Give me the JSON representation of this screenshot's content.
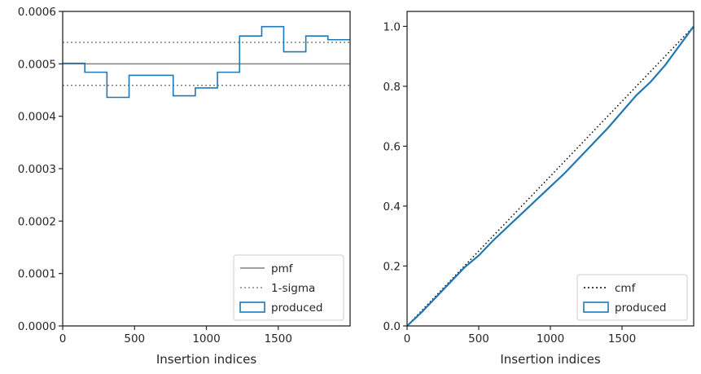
{
  "chart_data": [
    {
      "type": "line",
      "title": "",
      "xlabel": "Insertion indices",
      "ylabel": "",
      "xlim": [
        0,
        2000
      ],
      "ylim": [
        0,
        0.0006
      ],
      "x_ticks": [
        0,
        500,
        1000,
        1500
      ],
      "x_tick_labels": [
        "0",
        "500",
        "1000",
        "1500"
      ],
      "y_ticks": [
        0,
        0.0001,
        0.0002,
        0.0003,
        0.0004,
        0.0005,
        0.0006
      ],
      "y_tick_labels": [
        "0.0000",
        "0.0001",
        "0.0002",
        "0.0003",
        "0.0004",
        "0.0005",
        "0.0006"
      ],
      "grid": false,
      "legend_position": "lower-right",
      "series": [
        {
          "name": "pmf",
          "kind": "hline",
          "y": 0.0005,
          "color": "#808080",
          "style": "solid"
        },
        {
          "name": "1-sigma",
          "kind": "hlines",
          "y": [
            0.000459,
            0.000541
          ],
          "color": "#808080",
          "style": "dotted"
        },
        {
          "name": "produced",
          "kind": "step-histogram",
          "color": "#1f77b4",
          "bin_edges": [
            0,
            154,
            308,
            462,
            615,
            769,
            923,
            1077,
            1231,
            1385,
            1538,
            1692,
            1846,
            2000
          ],
          "values": [
            0.000501,
            0.000484,
            0.000436,
            0.000478,
            0.000478,
            0.000439,
            0.000454,
            0.000484,
            0.000553,
            0.000571,
            0.000523,
            0.000553,
            0.000546
          ]
        }
      ]
    },
    {
      "type": "line",
      "title": "",
      "xlabel": "Insertion indices",
      "ylabel": "",
      "xlim": [
        0,
        2000
      ],
      "ylim": [
        0,
        1.05
      ],
      "x_ticks": [
        0,
        500,
        1000,
        1500
      ],
      "x_tick_labels": [
        "0",
        "500",
        "1000",
        "1500"
      ],
      "y_ticks": [
        0,
        0.2,
        0.4,
        0.6,
        0.8,
        1.0
      ],
      "y_tick_labels": [
        "0.0",
        "0.2",
        "0.4",
        "0.6",
        "0.8",
        "1.0"
      ],
      "grid": false,
      "legend_position": "lower-right",
      "series": [
        {
          "name": "cmf",
          "kind": "line",
          "color": "#000000",
          "style": "dotted",
          "x": [
            0,
            2000
          ],
          "y": [
            0,
            1.0
          ]
        },
        {
          "name": "produced",
          "kind": "line",
          "color": "#1f77b4",
          "style": "solid",
          "x": [
            0,
            100,
            200,
            300,
            400,
            500,
            600,
            700,
            800,
            900,
            1000,
            1100,
            1200,
            1300,
            1400,
            1500,
            1600,
            1700,
            1800,
            1900,
            2000
          ],
          "y": [
            0,
            0.045,
            0.095,
            0.145,
            0.195,
            0.235,
            0.285,
            0.33,
            0.375,
            0.42,
            0.465,
            0.51,
            0.56,
            0.61,
            0.66,
            0.715,
            0.77,
            0.815,
            0.87,
            0.935,
            1.0
          ]
        }
      ]
    }
  ]
}
